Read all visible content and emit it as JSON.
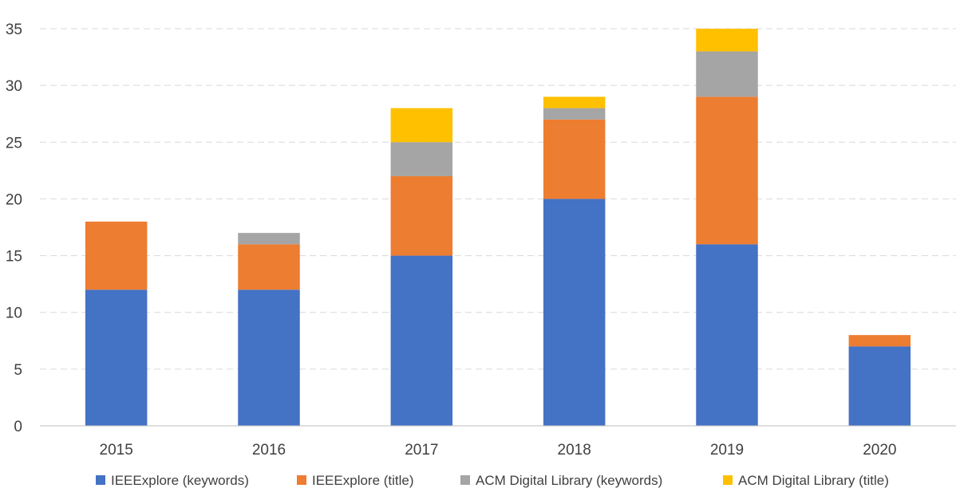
{
  "chart_data": {
    "type": "bar",
    "stacked": true,
    "categories": [
      "2015",
      "2016",
      "2017",
      "2018",
      "2019",
      "2020"
    ],
    "series": [
      {
        "name": "IEEExplore (keywords)",
        "color": "#4472c4",
        "values": [
          12,
          12,
          15,
          20,
          16,
          7
        ]
      },
      {
        "name": "IEEExplore (title)",
        "color": "#ed7d31",
        "values": [
          6,
          4,
          7,
          7,
          13,
          1
        ]
      },
      {
        "name": "ACM Digital Library (keywords)",
        "color": "#a5a5a5",
        "values": [
          0,
          1,
          3,
          1,
          4,
          0
        ]
      },
      {
        "name": "ACM Digital Library (title)",
        "color": "#ffc000",
        "values": [
          0,
          0,
          3,
          1,
          2,
          0
        ]
      }
    ],
    "y_ticks": [
      "0",
      "5",
      "10",
      "15",
      "20",
      "25",
      "30",
      "35"
    ],
    "ylim": [
      0,
      35
    ],
    "grid": true,
    "legend_position": "bottom"
  }
}
